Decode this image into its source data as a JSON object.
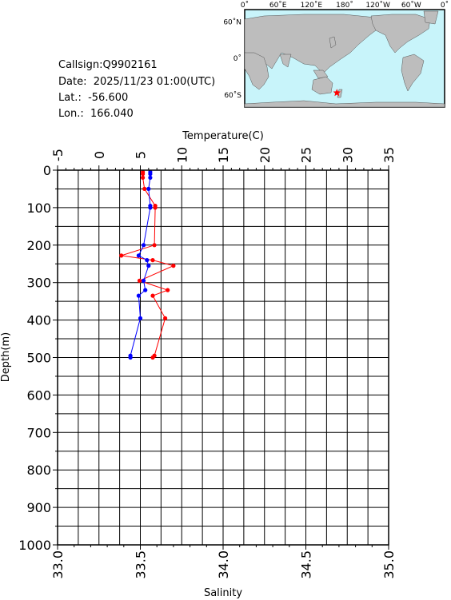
{
  "info": {
    "callsign": "Callsign:Q9902161",
    "date": "Date:  2025/11/23 01:00(UTC)",
    "lat": "Lat.:  -56.600",
    "lon": "Lon.:  166.040"
  },
  "map": {
    "lon_labels": [
      "0˚",
      "60˚E",
      "120˚E",
      "180˚",
      "120˚W",
      "60˚W",
      "0˚"
    ],
    "lat_labels": [
      "60˚N",
      "0˚",
      "60˚S"
    ],
    "station": {
      "lon": 166.04,
      "lat": -56.6
    },
    "colors": {
      "ocean": "#c8f4fa",
      "land": "#bdbdbd",
      "marker": "#ff0000"
    }
  },
  "chart_data": {
    "type": "line",
    "title": "",
    "top_axis": {
      "label": "Temperature(C)",
      "range": [
        -5,
        35
      ],
      "ticks": [
        "-5",
        "0",
        "5",
        "10",
        "15",
        "20",
        "25",
        "30",
        "35"
      ]
    },
    "bottom_axis": {
      "label": "Salinity",
      "range": [
        33.0,
        35.0
      ],
      "ticks": [
        "33.0",
        "33.5",
        "34.0",
        "34.5",
        "35.0"
      ]
    },
    "y_axis": {
      "label": "Depth(m)",
      "range": [
        0,
        1000
      ],
      "inverted": true,
      "ticks": [
        "0",
        "100",
        "200",
        "300",
        "400",
        "500",
        "600",
        "700",
        "800",
        "900",
        "1000"
      ]
    },
    "grid": true,
    "series": [
      {
        "variable": "temperature",
        "axis": "top",
        "color": "#ff0000",
        "points": [
          {
            "depth": 5,
            "value": 5.3
          },
          {
            "depth": 10,
            "value": 5.3
          },
          {
            "depth": 20,
            "value": 5.3
          },
          {
            "depth": 50,
            "value": 5.5
          },
          {
            "depth": 95,
            "value": 6.8
          },
          {
            "depth": 100,
            "value": 6.8
          },
          {
            "depth": 200,
            "value": 6.7
          },
          {
            "depth": 228,
            "value": 2.7
          },
          {
            "depth": 240,
            "value": 6.5
          },
          {
            "depth": 255,
            "value": 9.0
          },
          {
            "depth": 295,
            "value": 4.9
          },
          {
            "depth": 320,
            "value": 8.3
          },
          {
            "depth": 335,
            "value": 6.5
          },
          {
            "depth": 395,
            "value": 8.0
          },
          {
            "depth": 495,
            "value": 6.7
          },
          {
            "depth": 500,
            "value": 6.5
          }
        ]
      },
      {
        "variable": "salinity",
        "axis": "bottom",
        "color": "#0000ff",
        "points": [
          {
            "depth": 5,
            "value": 33.56
          },
          {
            "depth": 10,
            "value": 33.56
          },
          {
            "depth": 20,
            "value": 33.56
          },
          {
            "depth": 50,
            "value": 33.55
          },
          {
            "depth": 95,
            "value": 33.56
          },
          {
            "depth": 100,
            "value": 33.56
          },
          {
            "depth": 200,
            "value": 33.52
          },
          {
            "depth": 228,
            "value": 33.49
          },
          {
            "depth": 240,
            "value": 33.54
          },
          {
            "depth": 255,
            "value": 33.55
          },
          {
            "depth": 295,
            "value": 33.52
          },
          {
            "depth": 320,
            "value": 33.53
          },
          {
            "depth": 335,
            "value": 33.49
          },
          {
            "depth": 395,
            "value": 33.5
          },
          {
            "depth": 495,
            "value": 33.44
          },
          {
            "depth": 500,
            "value": 33.44
          }
        ]
      }
    ]
  }
}
